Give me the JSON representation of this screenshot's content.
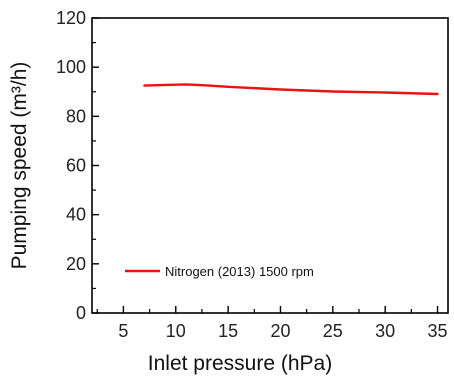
{
  "chart_data": {
    "type": "line",
    "xlabel": "Inlet pressure (hPa)",
    "ylabel": "Pumping speed (m³/h)",
    "xlim": [
      2,
      36
    ],
    "ylim": [
      0,
      120
    ],
    "x_ticks": [
      5,
      10,
      15,
      20,
      25,
      30,
      35
    ],
    "y_ticks": [
      0,
      20,
      40,
      60,
      80,
      100,
      120
    ],
    "grid": false,
    "legend_position": "bottom-left",
    "series": [
      {
        "name": "Nitrogen (2013) 1500 rpm",
        "color": "#ee1111",
        "x": [
          7,
          9,
          11,
          13,
          15,
          20,
          25,
          30,
          35
        ],
        "y": [
          92.5,
          92.8,
          93.0,
          92.6,
          92.0,
          90.9,
          90.1,
          89.7,
          89.1
        ]
      }
    ]
  }
}
